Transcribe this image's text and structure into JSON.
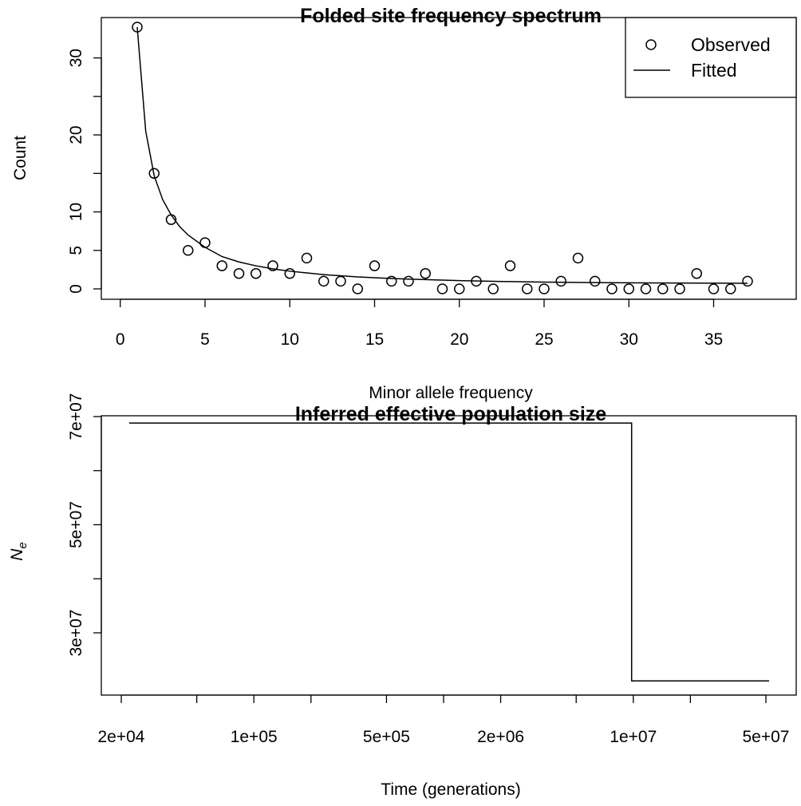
{
  "colors": {
    "line": "#000000",
    "background": "#ffffff"
  },
  "chart_data": [
    {
      "type": "scatter",
      "title": "Folded site frequency spectrum",
      "xlabel": "Minor allele frequency",
      "ylabel": "Count",
      "xlim": [
        0,
        37
      ],
      "ylim": [
        0,
        34
      ],
      "x_ticks": [
        0,
        5,
        10,
        15,
        20,
        25,
        30,
        35
      ],
      "y_ticks": [
        0,
        5,
        10,
        20,
        30
      ],
      "legend": {
        "position": "top-right",
        "observed_label": "Observed",
        "fitted_label": "Fitted"
      },
      "series": [
        {
          "name": "Observed",
          "kind": "points",
          "x": [
            1,
            2,
            3,
            4,
            5,
            6,
            7,
            8,
            9,
            10,
            11,
            12,
            13,
            14,
            15,
            16,
            17,
            18,
            19,
            20,
            21,
            22,
            23,
            24,
            25,
            26,
            27,
            28,
            29,
            30,
            31,
            32,
            33,
            34,
            35,
            36,
            37
          ],
          "y": [
            34,
            15,
            9,
            5,
            6,
            3,
            2,
            2,
            3,
            2,
            4,
            1,
            1,
            0,
            3,
            1,
            1,
            2,
            0,
            0,
            1,
            0,
            3,
            0,
            0,
            1,
            4,
            1,
            0,
            0,
            0,
            0,
            0,
            2,
            0,
            0,
            1
          ]
        },
        {
          "name": "Fitted",
          "kind": "line",
          "x": [
            1,
            1.5,
            2,
            2.5,
            3,
            3.5,
            4,
            5,
            6,
            7,
            8,
            9,
            10,
            12,
            14,
            16,
            18,
            20,
            22,
            25,
            28,
            31,
            34,
            37
          ],
          "y": [
            34,
            20.5,
            14.7,
            11.6,
            9.6,
            8.1,
            7.0,
            5.4,
            4.2,
            3.5,
            3.0,
            2.6,
            2.3,
            1.85,
            1.55,
            1.35,
            1.2,
            1.08,
            0.98,
            0.88,
            0.82,
            0.78,
            0.75,
            0.73
          ]
        }
      ]
    },
    {
      "type": "line",
      "title": "Inferred effective population size",
      "xlabel": "Time (generations)",
      "ylabel": "N",
      "ylabel_subscript": "e",
      "x_scale": "log",
      "xlim": [
        20000,
        50000000
      ],
      "ylim": [
        20000000,
        70000000
      ],
      "x_ticks": [
        20000,
        50000,
        100000,
        200000,
        500000,
        1000000,
        2000000,
        5000000,
        10000000,
        20000000,
        50000000
      ],
      "x_tick_labels": [
        "2e+04",
        "",
        "1e+05",
        "",
        "5e+05",
        "",
        "2e+06",
        "",
        "1e+07",
        "",
        "5e+07"
      ],
      "y_ticks": [
        30000000,
        40000000,
        50000000,
        60000000,
        70000000
      ],
      "y_tick_labels": [
        "3e+07",
        "",
        "5e+07",
        "",
        "7e+07"
      ],
      "series": [
        {
          "kind": "step",
          "x": [
            22000,
            9800000,
            9800000,
            52000000
          ],
          "y": [
            68800000,
            68800000,
            21100000,
            21100000
          ]
        }
      ]
    }
  ]
}
